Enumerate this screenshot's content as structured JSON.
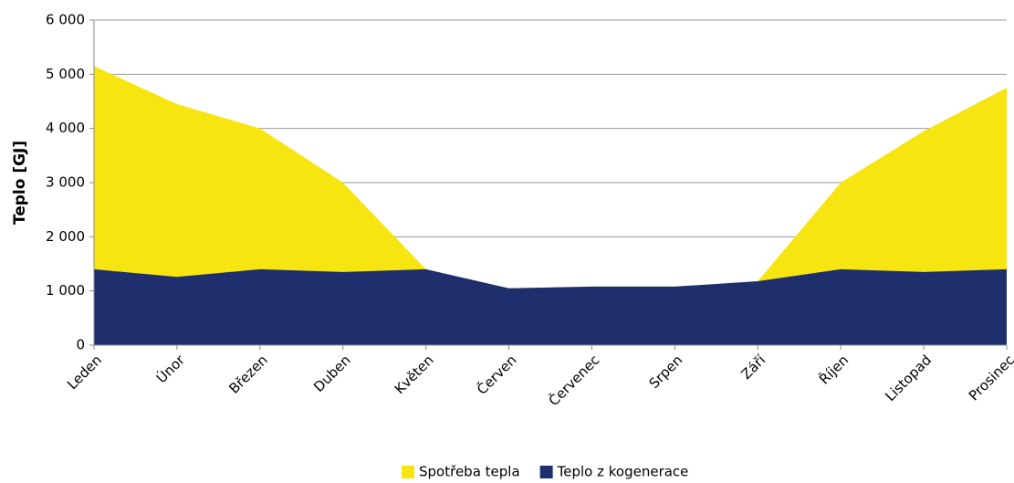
{
  "chart_data": {
    "type": "area",
    "y_label": "Teplo [GJ]",
    "categories": [
      "Leden",
      "Únor",
      "Březen",
      "Duben",
      "Květen",
      "Červen",
      "Červenec",
      "Srpen",
      "Září",
      "Říjen",
      "Listopad",
      "Prosinec"
    ],
    "series": [
      {
        "name": "Spotřeba tepla",
        "color": "#f7e512",
        "values": [
          5150,
          4450,
          4000,
          3000,
          1400,
          1050,
          1080,
          1080,
          1180,
          3000,
          3950,
          4750
        ]
      },
      {
        "name": "Teplo z kogenerace",
        "color": "#1f2f6e",
        "values": [
          1400,
          1260,
          1400,
          1350,
          1400,
          1050,
          1080,
          1080,
          1180,
          1400,
          1350,
          1400
        ]
      }
    ],
    "ylim": [
      0,
      6000
    ],
    "yticks": [
      0,
      {
        "value": 1000,
        "label": "1 000"
      },
      {
        "value": 2000,
        "label": "2 000"
      },
      {
        "value": 3000,
        "label": "3 000"
      },
      {
        "value": 4000,
        "label": "4 000"
      },
      {
        "value": 5000,
        "label": "5 000"
      },
      {
        "value": 6000,
        "label": "6 000"
      }
    ],
    "grid": true,
    "legend": "bottom"
  }
}
